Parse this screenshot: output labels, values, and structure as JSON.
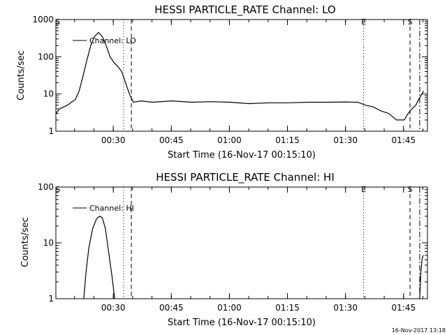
{
  "footer_timestamp": "16-Nov-2017 13:18",
  "chart_data": [
    {
      "type": "line",
      "title": "HESSI PARTICLE_RATE Channel: LO",
      "xlabel": "Start Time (16-Nov-17 00:15:10)",
      "ylabel": "Counts/sec",
      "y_scale": "log",
      "xlim_minutes_after_start": [
        0,
        96
      ],
      "ylim": [
        1,
        1000
      ],
      "x_tick_labels": [
        "00:30",
        "00:45",
        "01:00",
        "01:15",
        "01:30",
        "01:45"
      ],
      "x_tick_minutes": [
        14.83,
        29.83,
        44.83,
        59.83,
        74.83,
        89.83
      ],
      "y_tick_labels": [
        "1",
        "10",
        "100",
        "1000"
      ],
      "y_tick_values": [
        1,
        10,
        100,
        1000
      ],
      "legend": "Channel: LO",
      "legend_position": "top-left",
      "markers": [
        {
          "label": "S",
          "minute": 0.5,
          "style": "none"
        },
        {
          "label": "",
          "minute": 17.5,
          "style": "dotted"
        },
        {
          "label": "",
          "minute": 19.5,
          "style": "dashed"
        },
        {
          "label": "E",
          "minute": 79.5,
          "style": "dotted"
        },
        {
          "label": "S",
          "minute": 91.5,
          "style": "dashed"
        },
        {
          "label": "",
          "minute": 94.0,
          "style": "dashdot"
        }
      ],
      "series": [
        {
          "name": "Channel: LO",
          "x": [
            0,
            1,
            2,
            3,
            4,
            5,
            6,
            7,
            8,
            9,
            10,
            11,
            12,
            13,
            14,
            15,
            16,
            17,
            18,
            19,
            20,
            22,
            25,
            30,
            35,
            40,
            45,
            50,
            55,
            60,
            65,
            70,
            75,
            78,
            80,
            82,
            84,
            86,
            88,
            90,
            91,
            92,
            93,
            94,
            95
          ],
          "y": [
            3,
            4,
            4.5,
            5,
            6,
            7,
            12,
            30,
            80,
            200,
            350,
            450,
            350,
            200,
            100,
            70,
            55,
            40,
            20,
            10,
            6,
            6.5,
            6,
            6.5,
            6,
            6.2,
            6,
            5.5,
            5.8,
            5.8,
            6,
            6,
            6.1,
            6,
            5,
            4.5,
            3.5,
            3,
            2,
            2,
            3,
            4,
            5,
            8,
            12
          ]
        }
      ]
    },
    {
      "type": "line",
      "title": "HESSI PARTICLE_RATE Channel: HI",
      "xlabel": "Start Time (16-Nov-17 00:15:10)",
      "ylabel": "Counts/sec",
      "y_scale": "log",
      "xlim_minutes_after_start": [
        0,
        96
      ],
      "ylim": [
        1,
        100
      ],
      "x_tick_labels": [
        "00:30",
        "00:45",
        "01:00",
        "01:15",
        "01:30",
        "01:45"
      ],
      "x_tick_minutes": [
        14.83,
        29.83,
        44.83,
        59.83,
        74.83,
        89.83
      ],
      "y_tick_labels": [
        "1",
        "10",
        "100"
      ],
      "y_tick_values": [
        1,
        10,
        100
      ],
      "legend": "Channel: HI",
      "legend_position": "top-left",
      "markers": [
        {
          "label": "S",
          "minute": 0.5,
          "style": "none"
        },
        {
          "label": "",
          "minute": 17.5,
          "style": "dotted"
        },
        {
          "label": "",
          "minute": 19.5,
          "style": "dashed"
        },
        {
          "label": "E",
          "minute": 79.5,
          "style": "dotted"
        },
        {
          "label": "S",
          "minute": 91.5,
          "style": "dashed"
        },
        {
          "label": "",
          "minute": 94.0,
          "style": "dashdot"
        }
      ],
      "series": [
        {
          "name": "Channel: HI",
          "segments": [
            {
              "x": [
                7.2,
                7.8,
                8.5,
                9.5,
                10.5,
                11.3,
                12,
                12.8,
                13.5,
                14.5,
                15.2
              ],
              "y": [
                1,
                3,
                8,
                18,
                27,
                30,
                28,
                18,
                8,
                2.5,
                1
              ]
            },
            {
              "x": [
                94,
                94.3,
                94.6,
                94.9
              ],
              "y": [
                1,
                3,
                5,
                6
              ]
            }
          ]
        }
      ]
    }
  ]
}
